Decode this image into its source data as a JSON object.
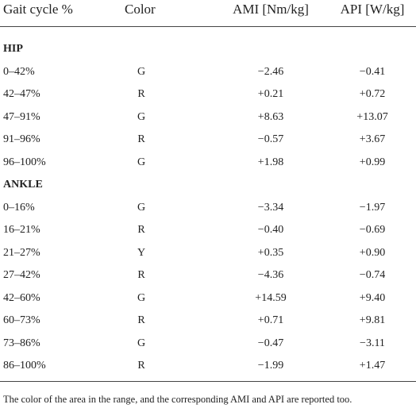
{
  "table": {
    "header": [
      "Gait cycle %",
      "Color",
      "AMI [Nm/kg]",
      "API [W/kg]"
    ],
    "sections": [
      {
        "title": "HIP",
        "rows": [
          [
            "0–42%",
            "G",
            "−2.46",
            "−0.41"
          ],
          [
            "42–47%",
            "R",
            "+0.21",
            "+0.72"
          ],
          [
            "47–91%",
            "G",
            "+8.63",
            "+13.07"
          ],
          [
            "91–96%",
            "R",
            "−0.57",
            "+3.67"
          ],
          [
            "96–100%",
            "G",
            "+1.98",
            "+0.99"
          ]
        ]
      },
      {
        "title": "ANKLE",
        "rows": [
          [
            "0–16%",
            "G",
            "−3.34",
            "−1.97"
          ],
          [
            "16–21%",
            "R",
            "−0.40",
            "−0.69"
          ],
          [
            "21–27%",
            "Y",
            "+0.35",
            "+0.90"
          ],
          [
            "27–42%",
            "R",
            "−4.36",
            "−0.74"
          ],
          [
            "42–60%",
            "G",
            "+14.59",
            "+9.40"
          ],
          [
            "60–73%",
            "R",
            "+0.71",
            "+9.81"
          ],
          [
            "73–86%",
            "G",
            "−0.47",
            "−3.11"
          ],
          [
            "86–100%",
            "R",
            "−1.99",
            "+1.47"
          ]
        ]
      }
    ],
    "footnote": "The color of the area in the range, and the corresponding AMI and API are reported too."
  }
}
